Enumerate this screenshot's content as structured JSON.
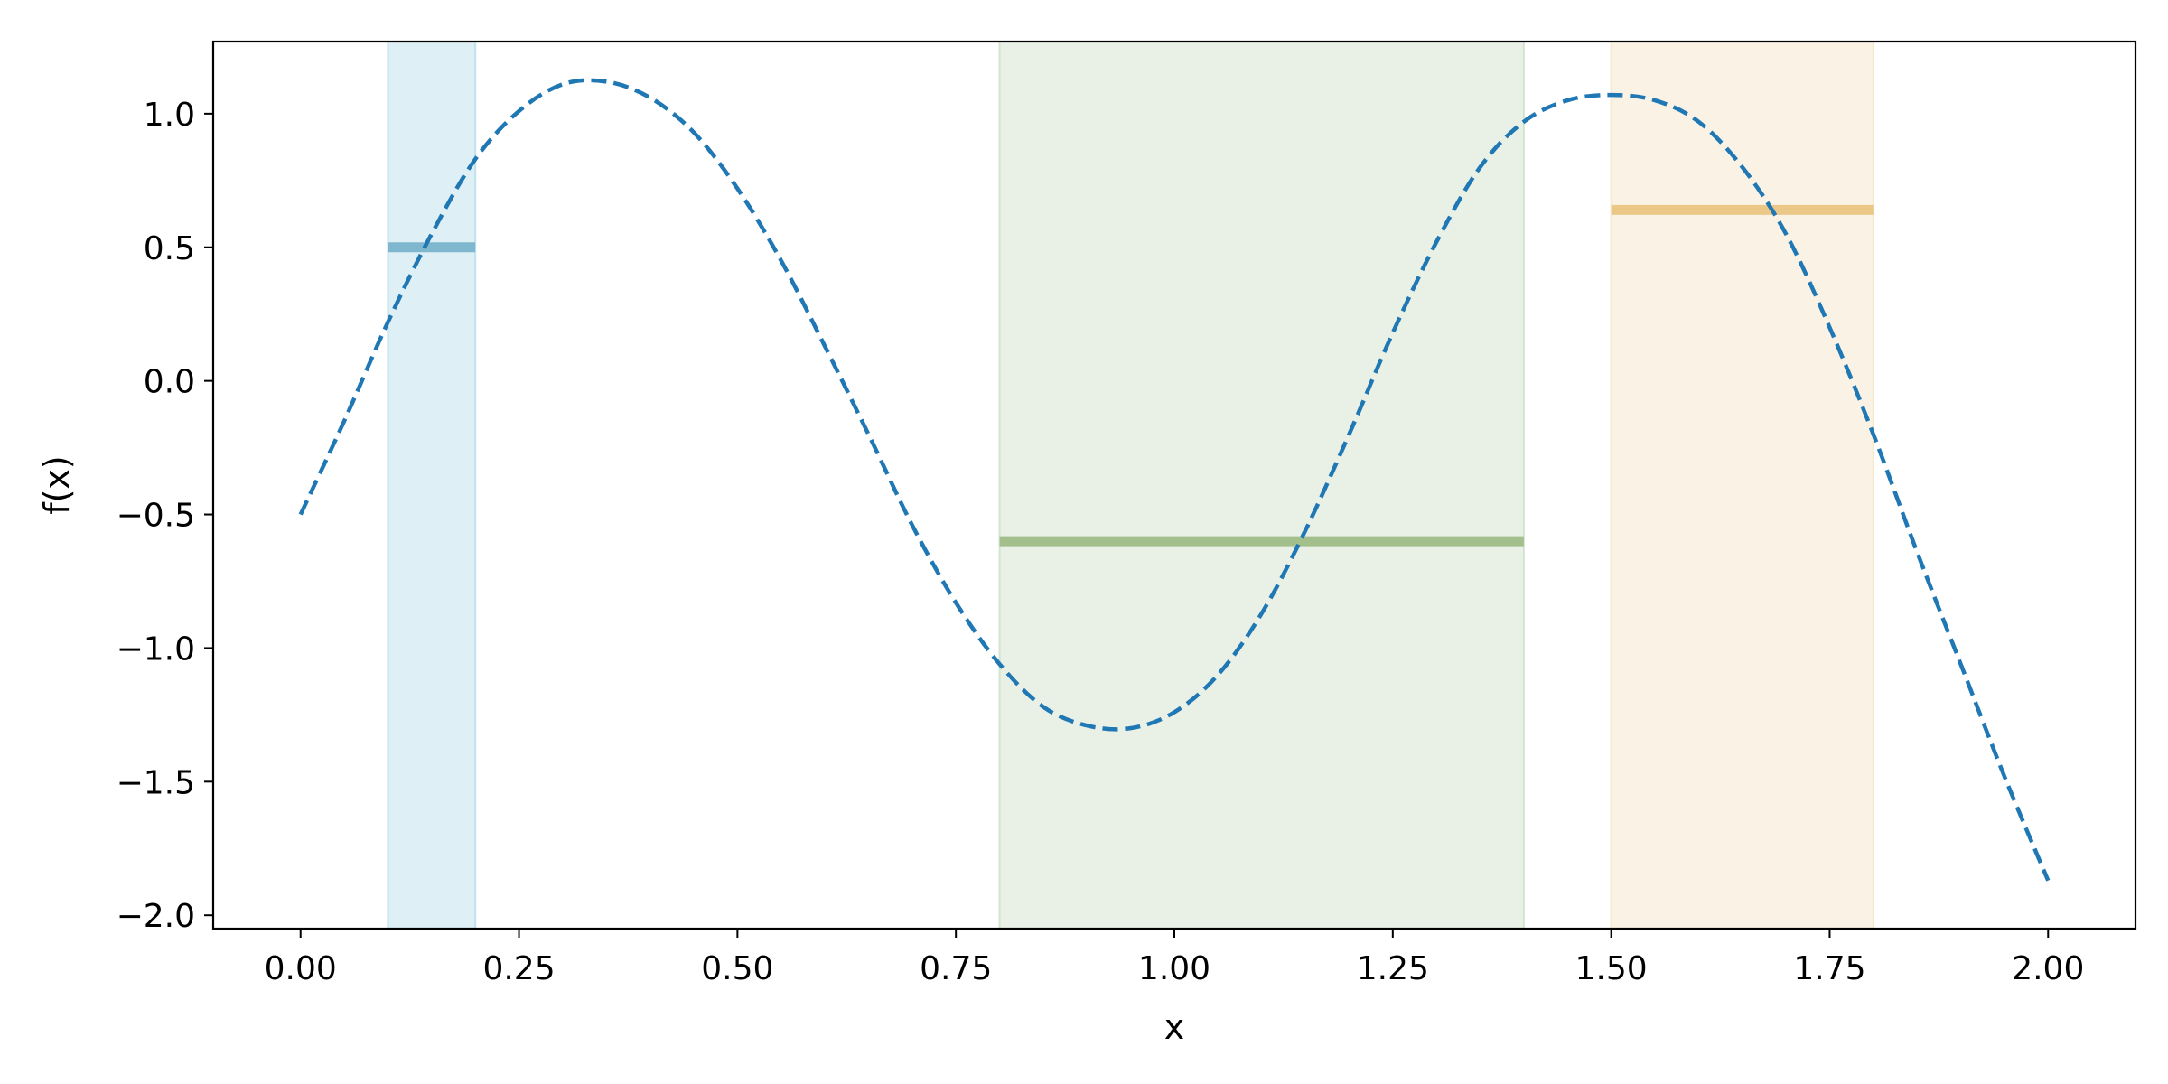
{
  "chart_data": {
    "type": "line",
    "title": "",
    "xlabel": "x",
    "ylabel": "f(x)",
    "xlim": [
      -0.1,
      2.1
    ],
    "ylim": [
      -2.05,
      1.27
    ],
    "xticks": [
      0.0,
      0.25,
      0.5,
      0.75,
      1.0,
      1.25,
      1.5,
      1.75,
      2.0
    ],
    "xtick_labels": [
      "0.00",
      "0.25",
      "0.50",
      "0.75",
      "1.00",
      "1.25",
      "1.50",
      "1.75",
      "2.00"
    ],
    "yticks": [
      1.0,
      0.5,
      0.0,
      -0.5,
      -1.0,
      -1.5,
      -2.0
    ],
    "ytick_labels": [
      "1.0",
      "0.5",
      "0.0",
      "−0.5",
      "−1.0",
      "−1.5",
      "−2.0"
    ],
    "grid": false,
    "series": [
      {
        "style": "dashed",
        "color": "#1f77b4",
        "x": [
          0.0,
          0.05,
          0.1,
          0.15,
          0.2,
          0.25,
          0.3,
          0.35,
          0.4,
          0.45,
          0.5,
          0.55,
          0.6,
          0.65,
          0.7,
          0.75,
          0.8,
          0.85,
          0.9,
          0.95,
          1.0,
          1.05,
          1.1,
          1.15,
          1.2,
          1.25,
          1.3,
          1.35,
          1.4,
          1.45,
          1.5,
          1.55,
          1.6,
          1.65,
          1.7,
          1.75,
          1.8,
          1.85,
          1.9,
          1.95,
          2.0
        ],
        "y": [
          -0.5,
          -0.15,
          0.22,
          0.55,
          0.83,
          1.01,
          1.11,
          1.12,
          1.06,
          0.93,
          0.72,
          0.45,
          0.13,
          -0.2,
          -0.54,
          -0.83,
          -1.06,
          -1.22,
          -1.29,
          -1.3,
          -1.24,
          -1.1,
          -0.87,
          -0.56,
          -0.2,
          0.18,
          0.52,
          0.8,
          0.97,
          1.05,
          1.07,
          1.05,
          0.97,
          0.8,
          0.55,
          0.2,
          -0.2,
          -0.64,
          -1.06,
          -1.48,
          -1.87
        ]
      }
    ],
    "intervals": [
      {
        "x_start": 0.1,
        "x_end": 0.2,
        "level": 0.5,
        "fill": "#add8e6",
        "line": "#7fb7cf"
      },
      {
        "x_start": 0.8,
        "x_end": 1.4,
        "level": -0.6,
        "fill": "#c7dcc2",
        "line": "#a3bf8b"
      },
      {
        "x_start": 1.5,
        "x_end": 1.8,
        "level": 0.64,
        "fill": "#f3e2bd",
        "line": "#ebc888"
      }
    ]
  }
}
